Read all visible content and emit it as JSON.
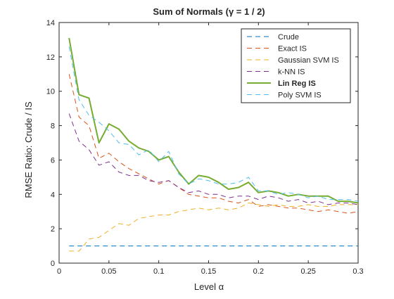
{
  "chart_data": {
    "type": "line",
    "title": "Sum of Normals (γ = 1 / 2)",
    "xlabel": "Level α",
    "ylabel": "RMSE Ratio: Crude / IS",
    "xlim": [
      0,
      0.3
    ],
    "ylim": [
      0,
      14
    ],
    "xticks": [
      0,
      0.05,
      0.1,
      0.15,
      0.2,
      0.25,
      0.3
    ],
    "xtick_labels": [
      "0",
      "0.05",
      "0.1",
      "0.15",
      "0.2",
      "0.25",
      "0.3"
    ],
    "yticks": [
      0,
      2,
      4,
      6,
      8,
      10,
      12,
      14
    ],
    "ytick_labels": [
      "0",
      "2",
      "4",
      "6",
      "8",
      "10",
      "12",
      "14"
    ],
    "grid": false,
    "legend_position": "top-right",
    "x": [
      0.01,
      0.02,
      0.03,
      0.04,
      0.05,
      0.06,
      0.07,
      0.08,
      0.09,
      0.1,
      0.11,
      0.12,
      0.13,
      0.14,
      0.15,
      0.16,
      0.17,
      0.18,
      0.19,
      0.2,
      0.21,
      0.22,
      0.23,
      0.24,
      0.25,
      0.26,
      0.27,
      0.28,
      0.29,
      0.3
    ],
    "series": [
      {
        "name": "Crude",
        "color": "#0072bd",
        "style": "dashed",
        "bold": false,
        "values": [
          1,
          1,
          1,
          1,
          1,
          1,
          1,
          1,
          1,
          1,
          1,
          1,
          1,
          1,
          1,
          1,
          1,
          1,
          1,
          1,
          1,
          1,
          1,
          1,
          1,
          1,
          1,
          1,
          1,
          1
        ]
      },
      {
        "name": "Exact IS",
        "color": "#d95319",
        "style": "dashed",
        "bold": false,
        "values": [
          11.0,
          8.5,
          8.0,
          6.1,
          6.4,
          5.9,
          5.5,
          5.2,
          4.9,
          4.6,
          4.8,
          4.4,
          4.0,
          3.9,
          3.8,
          3.8,
          3.6,
          3.5,
          3.7,
          3.3,
          3.4,
          3.3,
          3.2,
          3.2,
          3.1,
          3.0,
          3.1,
          3.0,
          2.9,
          3.0
        ]
      },
      {
        "name": "Gaussian SVM IS",
        "color": "#edb120",
        "style": "dashed",
        "bold": false,
        "values": [
          0.7,
          0.7,
          1.4,
          1.5,
          1.9,
          2.3,
          2.2,
          2.6,
          2.7,
          2.8,
          2.8,
          3.0,
          3.1,
          3.2,
          3.1,
          3.2,
          3.1,
          3.2,
          3.5,
          3.4,
          3.3,
          3.4,
          3.3,
          3.3,
          3.4,
          3.3,
          3.3,
          3.4,
          3.4,
          3.4
        ]
      },
      {
        "name": "k-NN IS",
        "color": "#7e2f8e",
        "style": "dashed",
        "bold": false,
        "values": [
          8.7,
          7.1,
          6.6,
          5.7,
          5.9,
          5.3,
          5.1,
          5.1,
          4.8,
          4.7,
          4.8,
          4.4,
          4.1,
          4.2,
          4.0,
          4.0,
          3.8,
          3.9,
          3.9,
          3.7,
          3.9,
          3.8,
          3.6,
          3.7,
          3.5,
          3.6,
          3.4,
          3.5,
          3.5,
          3.4
        ]
      },
      {
        "name": "Lin Reg IS",
        "color": "#77ac30",
        "style": "solid",
        "bold": true,
        "values": [
          13.1,
          9.8,
          9.6,
          7.0,
          8.1,
          7.8,
          7.1,
          6.7,
          6.5,
          6.0,
          6.2,
          5.3,
          4.6,
          5.1,
          5.0,
          4.7,
          4.3,
          4.4,
          4.7,
          4.1,
          4.2,
          4.1,
          3.9,
          4.0,
          3.9,
          3.9,
          3.9,
          3.6,
          3.6,
          3.5
        ]
      },
      {
        "name": "Poly SVM IS",
        "color": "#4dbeee",
        "style": "dashed",
        "bold": false,
        "values": [
          12.6,
          9.5,
          8.6,
          8.2,
          7.7,
          7.0,
          6.9,
          6.3,
          6.6,
          5.9,
          6.5,
          5.2,
          4.6,
          4.9,
          4.8,
          4.6,
          4.6,
          4.7,
          5.0,
          4.2,
          4.2,
          4.0,
          4.1,
          4.0,
          3.8,
          3.9,
          3.7,
          3.7,
          3.7,
          3.6
        ]
      }
    ]
  }
}
